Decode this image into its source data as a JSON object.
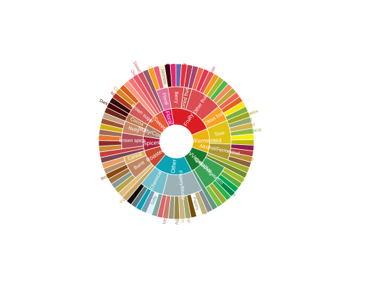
{
  "chart_data": {
    "type": "sunburst",
    "title": "",
    "center_color": "#ffffff",
    "rings": [
      {
        "level": 1,
        "label_color": "#ffffff"
      },
      {
        "level": 2,
        "label_color": "#ffffff"
      },
      {
        "level": 3,
        "label_color": "category"
      }
    ],
    "children": [
      {
        "name": "Floral",
        "color": "#da0d68",
        "children": [
          {
            "name": "Black Tea",
            "color": "#975e6d",
            "value": 1
          },
          {
            "name": "Floral",
            "color": "#e0719c",
            "children": [
              {
                "name": "Chamomile",
                "color": "#f99e1c",
                "value": 1
              },
              {
                "name": "Rose",
                "color": "#ef5a78",
                "value": 1
              },
              {
                "name": "Jasmine",
                "color": "#f7f1bd",
                "value": 1
              }
            ]
          }
        ]
      },
      {
        "name": "Fruity",
        "color": "#da1d23",
        "children": [
          {
            "name": "Berry",
            "color": "#dd4c51",
            "children": [
              {
                "name": "Blackberry",
                "color": "#3e0317",
                "value": 1
              },
              {
                "name": "Raspberry",
                "color": "#e62969",
                "value": 1
              },
              {
                "name": "Blueberry",
                "color": "#6569b0",
                "value": 1
              },
              {
                "name": "Strawberry",
                "color": "#ef2d36",
                "value": 1
              }
            ]
          },
          {
            "name": "Dried fruit",
            "color": "#c94a44",
            "children": [
              {
                "name": "Raisin",
                "color": "#b53b54",
                "value": 1
              },
              {
                "name": "Prune",
                "color": "#a5446f",
                "value": 1
              }
            ]
          },
          {
            "name": "Other fruit",
            "color": "#dd4c51",
            "children": [
              {
                "name": "Coconut",
                "color": "#f2684b",
                "value": 1
              },
              {
                "name": "Cherry",
                "color": "#e73451",
                "value": 1
              },
              {
                "name": "Pomegranate",
                "color": "#e65656",
                "value": 1
              },
              {
                "name": "Pineapple",
                "color": "#f89a1c",
                "value": 1
              },
              {
                "name": "Grape",
                "color": "#aeb92c",
                "value": 1
              },
              {
                "name": "Apple",
                "color": "#4eb849",
                "value": 1
              },
              {
                "name": "Peach",
                "color": "#f68a5c",
                "value": 1
              },
              {
                "name": "Pear",
                "color": "#baa635",
                "value": 1
              }
            ]
          },
          {
            "name": "Citrus fruit",
            "color": "#f7a128",
            "children": [
              {
                "name": "Grapefruit",
                "color": "#f26355",
                "value": 1
              },
              {
                "name": "Orange",
                "color": "#e2631e",
                "value": 1
              },
              {
                "name": "Lemon",
                "color": "#fde404",
                "value": 1
              },
              {
                "name": "Lime",
                "color": "#7eb138",
                "value": 1
              }
            ]
          }
        ]
      },
      {
        "name": "Sour/Fermented",
        "color": "#ebb40f",
        "children": [
          {
            "name": "Sour",
            "color": "#e1c315",
            "children": [
              {
                "name": "Sour aromatics",
                "color": "#9ea718",
                "value": 1
              },
              {
                "name": "Acetic acid",
                "color": "#94a76f",
                "value": 1
              },
              {
                "name": "Butyric acid",
                "color": "#d0b24f",
                "value": 1
              },
              {
                "name": "Isovaleric acid",
                "color": "#8eb646",
                "value": 1
              },
              {
                "name": "Citric acid",
                "color": "#faef07",
                "value": 1
              },
              {
                "name": "Malic acid",
                "color": "#c1ba07",
                "value": 1
              }
            ]
          },
          {
            "name": "Alcohol/Fermented",
            "color": "#b09733",
            "children": [
              {
                "name": "Winey",
                "color": "#8f1c53",
                "value": 1
              },
              {
                "name": "Whiskey",
                "color": "#b34039",
                "value": 1
              },
              {
                "name": "Fermented",
                "color": "#ba9232",
                "value": 1
              },
              {
                "name": "Overripe",
                "color": "#8b6439",
                "value": 1
              }
            ]
          }
        ]
      },
      {
        "name": "Green/Vegetative",
        "color": "#187a2f",
        "children": [
          {
            "name": "Olive oil",
            "color": "#a2b029",
            "value": 1
          },
          {
            "name": "Raw",
            "color": "#718933",
            "value": 1
          },
          {
            "name": "Green/Vegetative",
            "color": "#3aa255",
            "children": [
              {
                "name": "Under-ripe",
                "color": "#a2bb2b",
                "value": 1
              },
              {
                "name": "Peapod",
                "color": "#62aa3c",
                "value": 1
              },
              {
                "name": "Fresh",
                "color": "#03a653",
                "value": 1
              },
              {
                "name": "Dark green",
                "color": "#038549",
                "value": 1
              },
              {
                "name": "Vegetative",
                "color": "#28b44b",
                "value": 1
              },
              {
                "name": "Hay-like",
                "color": "#a3a830",
                "value": 1
              },
              {
                "name": "Herb-like",
                "color": "#7ac141",
                "value": 1
              }
            ]
          },
          {
            "name": "Beany",
            "color": "#5e9a80",
            "value": 1
          }
        ]
      },
      {
        "name": "Other",
        "color": "#0aa3b5",
        "children": [
          {
            "name": "Papery/Musty",
            "color": "#9db2b7",
            "children": [
              {
                "name": "Stale",
                "color": "#8b8c90",
                "value": 1
              },
              {
                "name": "Cardboard",
                "color": "#beb276",
                "value": 1
              },
              {
                "name": "Papery",
                "color": "#fefef4",
                "value": 1
              },
              {
                "name": "Woody",
                "color": "#744e03",
                "value": 1
              },
              {
                "name": "Moldy/Damp",
                "color": "#a3a36f",
                "value": 1
              },
              {
                "name": "Musty/Dusty",
                "color": "#c9b583",
                "value": 1
              },
              {
                "name": "Musty/Earthy",
                "color": "#978847",
                "value": 1
              },
              {
                "name": "Animalic",
                "color": "#9d977f",
                "value": 1
              },
              {
                "name": "Meaty/Brothy",
                "color": "#cc7b6a",
                "value": 1
              },
              {
                "name": "Phenolic",
                "color": "#db646a",
                "value": 1
              }
            ]
          },
          {
            "name": "Chemical",
            "color": "#76c0cb",
            "children": [
              {
                "name": "Bitter",
                "color": "#80a89d",
                "value": 1
              },
              {
                "name": "Salty",
                "color": "#def2fd",
                "value": 1
              },
              {
                "name": "Medicinal",
                "color": "#7a9bae",
                "value": 1
              },
              {
                "name": "Petroleum",
                "color": "#039fb8",
                "value": 1
              },
              {
                "name": "Skunky",
                "color": "#5e777b",
                "value": 1
              },
              {
                "name": "Rubber",
                "color": "#120c0c",
                "value": 1
              }
            ]
          }
        ]
      },
      {
        "name": "Roasted",
        "color": "#c94930",
        "children": [
          {
            "name": "Pipe tobacco",
            "color": "#caa465",
            "value": 1
          },
          {
            "name": "Tobacco",
            "color": "#dfbd7e",
            "value": 1
          },
          {
            "name": "Burnt",
            "color": "#be8663",
            "children": [
              {
                "name": "Acrid",
                "color": "#b9a449",
                "value": 1
              },
              {
                "name": "Ashy",
                "color": "#899893",
                "value": 1
              },
              {
                "name": "Smoky",
                "color": "#a1743b",
                "value": 1
              },
              {
                "name": "Brown, Roast",
                "color": "#894810",
                "value": 1
              }
            ]
          },
          {
            "name": "Cereal",
            "color": "#ddaf61",
            "children": [
              {
                "name": "Grain",
                "color": "#b7906f",
                "value": 1
              },
              {
                "name": "Malt",
                "color": "#eb9d5f",
                "value": 1
              }
            ]
          }
        ]
      },
      {
        "name": "Spices",
        "color": "#ad213e",
        "children": [
          {
            "name": "Pungent",
            "color": "#794752",
            "value": 1
          },
          {
            "name": "Pepper",
            "color": "#cc3d41",
            "value": 1
          },
          {
            "name": "Brown spice",
            "color": "#b14d57",
            "children": [
              {
                "name": "Anise",
                "color": "#c78936",
                "value": 1
              },
              {
                "name": "Nutmeg",
                "color": "#8c292c",
                "value": 1
              },
              {
                "name": "Cinnamon",
                "color": "#e5762e",
                "value": 1
              },
              {
                "name": "Clove",
                "color": "#a16c5a",
                "value": 1
              }
            ]
          }
        ]
      },
      {
        "name": "Nutty/Cocoa",
        "color": "#a87b64",
        "children": [
          {
            "name": "Nutty",
            "color": "#c78869",
            "children": [
              {
                "name": "Peanuts",
                "color": "#d4ad12",
                "value": 1
              },
              {
                "name": "Hazelnut",
                "color": "#9d5433",
                "value": 1
              },
              {
                "name": "Almond",
                "color": "#c89f83",
                "value": 1
              }
            ]
          },
          {
            "name": "Cocoa",
            "color": "#bb764c",
            "children": [
              {
                "name": "Chocolate",
                "color": "#692a19",
                "value": 1
              },
              {
                "name": "Dark chocolate",
                "color": "#470604",
                "value": 1
              }
            ]
          }
        ]
      },
      {
        "name": "Sweet",
        "color": "#e65832",
        "children": [
          {
            "name": "Brown sugar",
            "color": "#d45a59",
            "children": [
              {
                "name": "Molasses",
                "color": "#310d0f",
                "value": 1
              },
              {
                "name": "Maple syrup",
                "color": "#ae341f",
                "value": 1
              },
              {
                "name": "Caramelized",
                "color": "#d78823",
                "value": 1
              },
              {
                "name": "Honey",
                "color": "#da5c1f",
                "value": 1
              }
            ]
          },
          {
            "name": "Vanilla",
            "color": "#f89a80",
            "value": 1
          },
          {
            "name": "Vanillin",
            "color": "#f37674",
            "value": 1
          },
          {
            "name": "Overall sweet",
            "color": "#e75b68",
            "value": 1
          },
          {
            "name": "Sweet Aromatics",
            "color": "#d0545f",
            "value": 1
          }
        ]
      }
    ]
  }
}
